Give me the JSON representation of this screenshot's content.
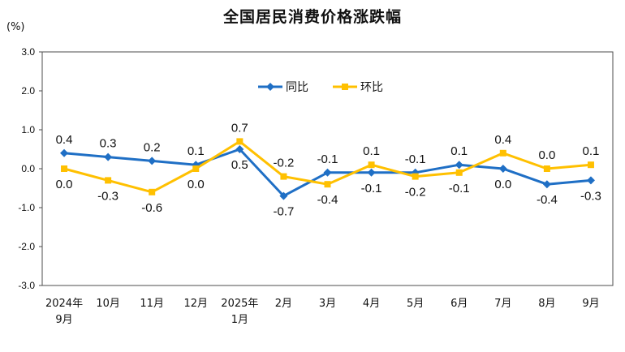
{
  "chart_data": {
    "type": "line",
    "title": "全国居民消费价格涨跌幅",
    "unit": "(%)",
    "categories": [
      [
        "2024年",
        "9月"
      ],
      [
        "10月"
      ],
      [
        "11月"
      ],
      [
        "12月"
      ],
      [
        "2025年",
        "1月"
      ],
      [
        "2月"
      ],
      [
        "3月"
      ],
      [
        "4月"
      ],
      [
        "5月"
      ],
      [
        "6月"
      ],
      [
        "7月"
      ],
      [
        "8月"
      ],
      [
        "9月"
      ]
    ],
    "yticks": [
      "3.0",
      "2.0",
      "1.0",
      "0.0",
      "-1.0",
      "-2.0",
      "-3.0"
    ],
    "ylim": [
      -3.0,
      3.0
    ],
    "grid": false,
    "legend_position": "top-center",
    "series": [
      {
        "name": "同比",
        "color": "#1f6fc5",
        "marker": "diamond",
        "values": [
          0.4,
          0.3,
          0.2,
          0.1,
          0.5,
          -0.7,
          -0.1,
          -0.1,
          -0.1,
          0.1,
          0.0,
          -0.4,
          -0.3
        ],
        "labels": [
          "0.4",
          "0.3",
          "0.2",
          "0.1",
          "0.5",
          "-0.7",
          "-0.1",
          "-0.1",
          "-0.1",
          "0.1",
          "0.0",
          "-0.4",
          "-0.3"
        ]
      },
      {
        "name": "环比",
        "color": "#ffc000",
        "marker": "square",
        "values": [
          0.0,
          -0.3,
          -0.6,
          0.0,
          0.7,
          -0.2,
          -0.4,
          0.1,
          -0.2,
          -0.1,
          0.4,
          0.0,
          0.1
        ],
        "labels": [
          "0.0",
          "-0.3",
          "-0.6",
          "0.0",
          "0.7",
          "-0.2",
          "-0.4",
          "0.1",
          "-0.2",
          "-0.1",
          "0.4",
          "0.0",
          "0.1"
        ]
      }
    ]
  }
}
